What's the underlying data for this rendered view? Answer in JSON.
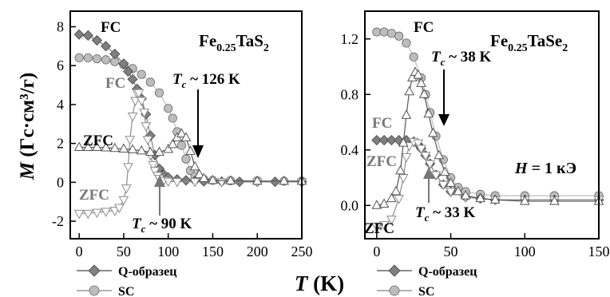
{
  "figure": {
    "y_axis_label_prefix": "M",
    "y_axis_label_unit": " (Гс·см³/г)",
    "x_axis_label_prefix": "T",
    "x_axis_label_unit": " (K)"
  },
  "chart_data": [
    {
      "type": "scatter",
      "panel": "left",
      "sample_label": {
        "base": "Fe",
        "sub1": "0.25",
        "mid": "TaS",
        "sub2": "2"
      },
      "xlim": [
        -10,
        250
      ],
      "ylim": [
        -2.9,
        8.8
      ],
      "xticks": [
        0,
        50,
        100,
        150,
        200,
        250
      ],
      "yticks": [
        -2,
        0,
        2,
        4,
        6,
        8
      ],
      "legend": {
        "placement": "bottom-left",
        "items": [
          "Q-образец",
          "SC"
        ]
      },
      "annotations": {
        "fc_top": "FC",
        "fc_mid": "FC",
        "zfc_top": "ZFC",
        "zfc_bottom": "ZFC",
        "tc_upper": "T_c ~ 126 K",
        "tc_upper_prefix": "T",
        "tc_upper_sub": "c",
        "tc_upper_rest": " ~ 126 K",
        "tc_lower_prefix": "T",
        "tc_lower_sub": "c",
        "tc_lower_rest": " ~ 90 K"
      },
      "series": [
        {
          "name": "Q-образец",
          "branch": "FC",
          "marker": "diamond",
          "color": "#7f7f7f",
          "x": [
            0,
            10,
            20,
            30,
            40,
            50,
            55,
            60,
            65,
            70,
            75,
            80,
            85,
            90,
            95,
            100,
            110,
            120,
            130,
            140,
            160,
            180,
            200,
            220,
            250
          ],
          "y": [
            7.6,
            7.55,
            7.3,
            7.0,
            6.6,
            6.1,
            5.7,
            5.3,
            4.8,
            4.3,
            3.5,
            2.4,
            1.4,
            0.7,
            0.4,
            0.25,
            0.15,
            0.1,
            0.08,
            0.05,
            0.04,
            0.03,
            0.03,
            0.03,
            0.03
          ]
        },
        {
          "name": "Q-образец",
          "branch": "ZFC",
          "marker": "triangle-down",
          "color": "#8c8c8c",
          "x": [
            0,
            10,
            20,
            30,
            40,
            45,
            50,
            53,
            55,
            57,
            60,
            63,
            65,
            67,
            70,
            73,
            75,
            77,
            80,
            83,
            85,
            88,
            90,
            95,
            100,
            110,
            130,
            160,
            200,
            250
          ],
          "y": [
            -1.6,
            -1.6,
            -1.55,
            -1.5,
            -1.45,
            -1.3,
            -0.9,
            -0.3,
            0.8,
            2.2,
            3.4,
            4.2,
            4.6,
            4.6,
            4.2,
            3.6,
            2.9,
            2.2,
            1.4,
            0.9,
            0.6,
            0.35,
            0.2,
            0.1,
            0.05,
            0.03,
            0.03,
            0.02,
            0.02,
            0.02
          ]
        },
        {
          "name": "SC",
          "branch": "FC",
          "marker": "circle",
          "color": "#bdbdbd",
          "x": [
            0,
            10,
            20,
            30,
            40,
            50,
            60,
            70,
            80,
            90,
            100,
            105,
            110,
            115,
            120,
            125,
            130,
            140,
            150,
            170,
            200,
            230,
            250
          ],
          "y": [
            6.4,
            6.4,
            6.35,
            6.3,
            6.2,
            6.05,
            5.85,
            5.55,
            5.15,
            4.6,
            3.8,
            3.3,
            2.6,
            1.9,
            1.2,
            0.6,
            0.3,
            0.15,
            0.1,
            0.08,
            0.07,
            0.06,
            0.06
          ]
        },
        {
          "name": "SC",
          "branch": "ZFC",
          "marker": "triangle-up",
          "color": "#555555",
          "x": [
            0,
            10,
            20,
            30,
            40,
            50,
            60,
            70,
            80,
            90,
            100,
            105,
            110,
            115,
            120,
            125,
            130,
            135,
            140,
            150,
            170,
            200,
            230,
            250
          ],
          "y": [
            1.8,
            1.8,
            1.8,
            1.78,
            1.75,
            1.72,
            1.68,
            1.62,
            1.55,
            1.55,
            1.7,
            1.95,
            2.3,
            2.5,
            2.3,
            1.6,
            0.8,
            0.4,
            0.2,
            0.1,
            0.08,
            0.06,
            0.06,
            0.06
          ]
        }
      ]
    },
    {
      "type": "scatter",
      "panel": "right",
      "sample_label": {
        "base": "Fe",
        "sub1": "0.25",
        "mid": "TaSe",
        "sub2": "2"
      },
      "xlim": [
        -8,
        150
      ],
      "ylim": [
        -0.24,
        1.4
      ],
      "xticks": [
        0,
        50,
        100,
        150
      ],
      "yticks": [
        0.0,
        0.4,
        0.8,
        1.2
      ],
      "ytick_labels": [
        "0.0",
        "0.4",
        "0.8",
        "1.2"
      ],
      "legend": {
        "placement": "bottom-left",
        "items": [
          "Q-образец",
          "SC"
        ]
      },
      "annotations": {
        "fc_top": "FC",
        "fc_mid": "FC",
        "zfc_mid": "ZFC",
        "zfc_bottom": "ZFC",
        "field_prefix": "H",
        "field_rest": " = 1 кЭ",
        "tc_upper_prefix": "T",
        "tc_upper_sub": "c",
        "tc_upper_rest": " ~ 38 K",
        "tc_lower_prefix": "T",
        "tc_lower_sub": "c",
        "tc_lower_rest": " ~ 33 K"
      },
      "series": [
        {
          "name": "Q-образец",
          "branch": "FC",
          "marker": "diamond",
          "color": "#7f7f7f",
          "x": [
            0,
            5,
            10,
            15,
            20,
            25,
            28,
            30,
            33,
            36,
            40,
            45,
            50,
            60,
            70,
            80,
            100,
            120,
            150
          ],
          "y": [
            0.47,
            0.47,
            0.47,
            0.47,
            0.47,
            0.46,
            0.44,
            0.41,
            0.36,
            0.3,
            0.22,
            0.15,
            0.1,
            0.06,
            0.05,
            0.04,
            0.04,
            0.04,
            0.04
          ]
        },
        {
          "name": "Q-образец",
          "branch": "ZFC",
          "marker": "triangle-down",
          "color": "#8c8c8c",
          "x": [
            0,
            5,
            10,
            15,
            18,
            20,
            22,
            25,
            28,
            30,
            33,
            36,
            40,
            45,
            50,
            60,
            80,
            100,
            120,
            150
          ],
          "y": [
            -0.15,
            -0.14,
            -0.1,
            0.05,
            0.2,
            0.35,
            0.43,
            0.46,
            0.45,
            0.41,
            0.36,
            0.3,
            0.22,
            0.15,
            0.1,
            0.06,
            0.04,
            0.04,
            0.04,
            0.04
          ]
        },
        {
          "name": "SC",
          "branch": "FC",
          "marker": "circle",
          "color": "#bdbdbd",
          "x": [
            0,
            5,
            10,
            15,
            20,
            25,
            30,
            33,
            36,
            40,
            45,
            50,
            55,
            60,
            70,
            80,
            100,
            120,
            150
          ],
          "y": [
            1.25,
            1.25,
            1.24,
            1.22,
            1.17,
            1.07,
            0.92,
            0.8,
            0.67,
            0.5,
            0.33,
            0.2,
            0.13,
            0.1,
            0.08,
            0.07,
            0.07,
            0.07,
            0.07
          ]
        },
        {
          "name": "SC",
          "branch": "ZFC",
          "marker": "triangle-up",
          "color": "#555555",
          "x": [
            0,
            5,
            10,
            13,
            16,
            18,
            20,
            22,
            24,
            26,
            28,
            30,
            32,
            35,
            38,
            42,
            46,
            50,
            55,
            60,
            70,
            80,
            100,
            120,
            150
          ],
          "y": [
            0.0,
            0.01,
            0.05,
            0.1,
            0.25,
            0.45,
            0.65,
            0.82,
            0.92,
            0.96,
            0.94,
            0.88,
            0.8,
            0.66,
            0.52,
            0.36,
            0.24,
            0.16,
            0.1,
            0.07,
            0.05,
            0.04,
            0.03,
            0.03,
            0.03
          ]
        }
      ]
    }
  ]
}
